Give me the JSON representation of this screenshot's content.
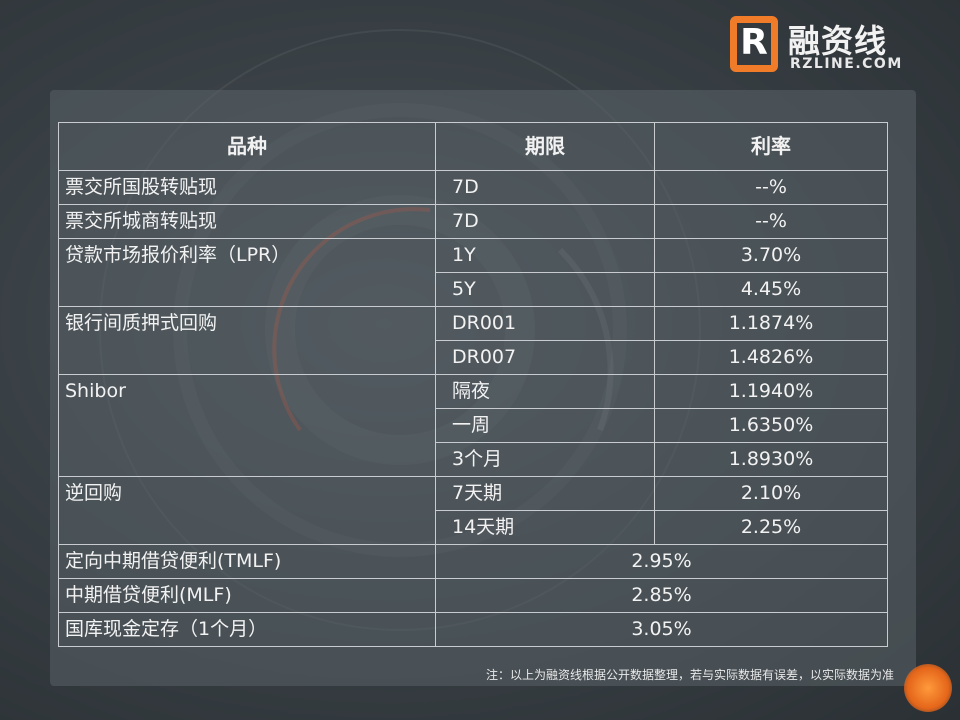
{
  "brand": {
    "logo_letter": "R",
    "name_cn": "融资线",
    "name_en": "RZLINE.COM",
    "accent_color": "#f07c2a"
  },
  "table": {
    "headers": [
      "品种",
      "期限",
      "利率"
    ],
    "rows": [
      {
        "name": "票交所国股转贴现",
        "period": "7D",
        "rate": "--%"
      },
      {
        "name": "票交所城商转贴现",
        "period": "7D",
        "rate": "--%"
      },
      {
        "name": "贷款市场报价利率（LPR）",
        "period": "1Y",
        "rate": "3.70%"
      },
      {
        "name": "",
        "period": "5Y",
        "rate": "4.45%"
      },
      {
        "name": "银行间质押式回购",
        "period": "DR001",
        "rate": "1.1874%"
      },
      {
        "name": "",
        "period": "DR007",
        "rate": "1.4826%"
      },
      {
        "name": "Shibor",
        "period": "隔夜",
        "rate": "1.1940%"
      },
      {
        "name": "",
        "period": "一周",
        "rate": "1.6350%"
      },
      {
        "name": "",
        "period": "3个月",
        "rate": "1.8930%"
      },
      {
        "name": "逆回购",
        "period": "7天期",
        "rate": "2.10%"
      },
      {
        "name": "",
        "period": "14天期",
        "rate": "2.25%"
      },
      {
        "name": "定向中期借贷便利(TMLF)",
        "period": "",
        "rate": "2.95%"
      },
      {
        "name": "中期借贷便利(MLF)",
        "period": "",
        "rate": "2.85%"
      },
      {
        "name": "国库现金定存（1个月）",
        "period": "",
        "rate": "3.05%"
      }
    ]
  },
  "note": "注：以上为融资线根据公开数据整理，若与实际数据有误差，以实际数据为准"
}
